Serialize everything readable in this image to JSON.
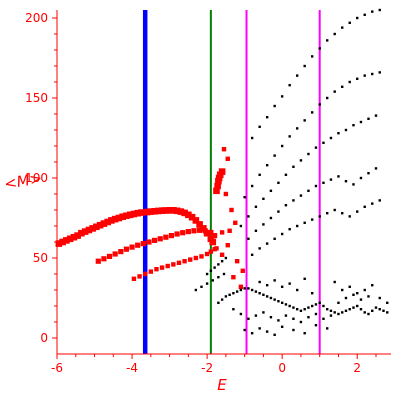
{
  "chart_data": {
    "type": "scatter",
    "xlabel": "E",
    "ylabel": "<M>",
    "xlim": [
      -6,
      2.9
    ],
    "ylim": [
      -10,
      205
    ],
    "xticks": [
      -6,
      -4,
      -2,
      0,
      2
    ],
    "yticks": [
      0,
      50,
      100,
      150,
      200
    ],
    "grid": false,
    "axis_color": "#ff0000",
    "vlines": [
      {
        "x": -3.65,
        "color": "#0000ff",
        "width": "thick"
      },
      {
        "x": -1.9,
        "color": "#008000",
        "width": "thin"
      },
      {
        "x": -0.95,
        "color": "#ff00ff",
        "width": "thin"
      },
      {
        "x": 1.0,
        "color": "#ff00ff",
        "width": "thin"
      }
    ],
    "series": [
      {
        "marker_color": "#ff0000",
        "marker": "large",
        "points": [
          [
            -5.95,
            59
          ],
          [
            -5.85,
            60
          ],
          [
            -5.75,
            61
          ],
          [
            -5.65,
            62
          ],
          [
            -5.55,
            63
          ],
          [
            -5.45,
            64
          ],
          [
            -5.35,
            65.5
          ],
          [
            -5.25,
            66.5
          ],
          [
            -5.15,
            67.5
          ],
          [
            -5.05,
            68.5
          ],
          [
            -4.95,
            69.5
          ],
          [
            -4.85,
            70.5
          ],
          [
            -4.75,
            71.5
          ],
          [
            -4.65,
            72.5
          ],
          [
            -4.55,
            73.5
          ],
          [
            -4.45,
            74.3
          ],
          [
            -4.35,
            75
          ],
          [
            -4.25,
            75.8
          ],
          [
            -4.15,
            76.4
          ],
          [
            -4.05,
            77
          ],
          [
            -3.95,
            77.5
          ],
          [
            -3.85,
            78
          ],
          [
            -3.75,
            78.4
          ],
          [
            -3.6,
            78.7
          ],
          [
            -3.5,
            79
          ],
          [
            -3.4,
            79.2
          ],
          [
            -3.3,
            79.4
          ],
          [
            -3.2,
            79.6
          ],
          [
            -3.1,
            79.7
          ],
          [
            -3.0,
            79.8
          ],
          [
            -2.9,
            79.8
          ],
          [
            -2.8,
            79.5
          ],
          [
            -2.7,
            79
          ],
          [
            -2.6,
            78.2
          ],
          [
            -2.5,
            77
          ],
          [
            -2.4,
            75.5
          ],
          [
            -2.3,
            73.5
          ],
          [
            -2.2,
            71
          ],
          [
            -2.1,
            68.5
          ],
          [
            -2.0,
            65.5
          ],
          [
            -1.9,
            62
          ],
          [
            -1.85,
            60
          ]
        ]
      },
      {
        "marker_color": "#ff0000",
        "marker": "medium",
        "points": [
          [
            -4.9,
            48
          ],
          [
            -4.75,
            49.5
          ],
          [
            -4.6,
            51
          ],
          [
            -4.45,
            52.5
          ],
          [
            -4.3,
            54
          ],
          [
            -4.15,
            55.5
          ],
          [
            -4.0,
            56.8
          ],
          [
            -3.85,
            58
          ],
          [
            -3.7,
            59
          ],
          [
            -3.55,
            60
          ],
          [
            -3.4,
            61
          ],
          [
            -3.25,
            62
          ],
          [
            -3.1,
            63
          ],
          [
            -2.95,
            64
          ],
          [
            -2.8,
            65
          ],
          [
            -2.65,
            65.8
          ],
          [
            -2.5,
            66.5
          ],
          [
            -2.35,
            67
          ],
          [
            -2.2,
            67.3
          ],
          [
            -2.05,
            67
          ],
          [
            -1.9,
            66
          ],
          [
            -1.8,
            64
          ]
        ]
      },
      {
        "marker_color": "#ff0000",
        "marker": "small",
        "points": [
          [
            -3.95,
            37
          ],
          [
            -3.8,
            38.5
          ],
          [
            -3.65,
            40
          ],
          [
            -3.5,
            41.5
          ],
          [
            -3.35,
            43
          ],
          [
            -3.2,
            44
          ],
          [
            -3.05,
            45
          ],
          [
            -2.9,
            46
          ],
          [
            -2.75,
            47
          ],
          [
            -2.6,
            48
          ],
          [
            -2.45,
            49
          ],
          [
            -2.3,
            50
          ],
          [
            -2.15,
            51
          ],
          [
            -2.0,
            52.5
          ],
          [
            -1.9,
            54
          ],
          [
            -1.8,
            55.5
          ]
        ]
      },
      {
        "marker_color": "#ff0000",
        "marker": "large",
        "points": [
          [
            -1.75,
            92
          ],
          [
            -1.72,
            95
          ],
          [
            -1.7,
            98
          ],
          [
            -1.68,
            100
          ],
          [
            -1.65,
            102
          ],
          [
            -1.6,
            104
          ]
        ]
      },
      {
        "marker_color": "#ff0000",
        "marker": "small",
        "points": [
          [
            -1.55,
            118
          ],
          [
            -1.45,
            112
          ],
          [
            -1.5,
            90
          ],
          [
            -1.35,
            80
          ],
          [
            -1.25,
            72
          ],
          [
            -1.6,
            66
          ],
          [
            -1.45,
            58
          ],
          [
            -1.2,
            48
          ],
          [
            -1.05,
            42
          ],
          [
            -1.3,
            38
          ],
          [
            -1.1,
            32
          ],
          [
            -1.6,
            52
          ],
          [
            -1.75,
            56
          ],
          [
            -1.4,
            67
          ]
        ]
      },
      {
        "marker_color": "#000000",
        "marker": "tiny",
        "points": [
          [
            -0.8,
            125
          ],
          [
            -0.6,
            132
          ],
          [
            -0.4,
            138
          ],
          [
            -0.2,
            145
          ],
          [
            0.0,
            151
          ],
          [
            0.2,
            158
          ],
          [
            0.4,
            164
          ],
          [
            0.6,
            170
          ],
          [
            0.8,
            176
          ],
          [
            1.0,
            181
          ],
          [
            1.2,
            186
          ],
          [
            1.4,
            190
          ],
          [
            1.6,
            194
          ],
          [
            1.8,
            197
          ],
          [
            2.0,
            200
          ],
          [
            2.2,
            202
          ],
          [
            2.4,
            204
          ],
          [
            2.6,
            205
          ],
          [
            -1.0,
            88
          ],
          [
            -0.8,
            95
          ],
          [
            -0.6,
            102
          ],
          [
            -0.4,
            108
          ],
          [
            -0.2,
            114
          ],
          [
            0.0,
            120
          ],
          [
            0.2,
            126
          ],
          [
            0.4,
            131
          ],
          [
            0.6,
            136
          ],
          [
            0.8,
            141
          ],
          [
            1.0,
            146
          ],
          [
            1.2,
            150
          ],
          [
            1.4,
            154
          ],
          [
            1.6,
            157
          ],
          [
            1.8,
            160
          ],
          [
            2.0,
            162
          ],
          [
            2.2,
            164
          ],
          [
            2.4,
            165
          ],
          [
            2.6,
            166
          ],
          [
            -1.1,
            70
          ],
          [
            -0.9,
            76
          ],
          [
            -0.7,
            82
          ],
          [
            -0.5,
            87
          ],
          [
            -0.3,
            92
          ],
          [
            -0.1,
            97
          ],
          [
            0.1,
            102
          ],
          [
            0.3,
            107
          ],
          [
            0.5,
            111
          ],
          [
            0.7,
            115
          ],
          [
            0.9,
            119
          ],
          [
            1.1,
            122
          ],
          [
            1.3,
            125
          ],
          [
            1.5,
            128
          ],
          [
            1.7,
            130
          ],
          [
            1.9,
            133
          ],
          [
            2.1,
            135
          ],
          [
            2.3,
            137
          ],
          [
            2.5,
            139
          ],
          [
            -0.9,
            62
          ],
          [
            -0.7,
            67
          ],
          [
            -0.5,
            71
          ],
          [
            -0.3,
            75
          ],
          [
            -0.1,
            79
          ],
          [
            0.1,
            83
          ],
          [
            0.3,
            86
          ],
          [
            0.5,
            89
          ],
          [
            0.7,
            92
          ],
          [
            0.9,
            95
          ],
          [
            1.1,
            97
          ],
          [
            1.3,
            99
          ],
          [
            1.5,
            101
          ],
          [
            1.7,
            98
          ],
          [
            1.9,
            96
          ],
          [
            2.1,
            100
          ],
          [
            2.3,
            103
          ],
          [
            2.5,
            106
          ],
          [
            -0.8,
            52
          ],
          [
            -0.6,
            56
          ],
          [
            -0.4,
            59
          ],
          [
            -0.2,
            62
          ],
          [
            0.0,
            65
          ],
          [
            0.2,
            68
          ],
          [
            0.4,
            70
          ],
          [
            0.6,
            72
          ],
          [
            0.8,
            74
          ],
          [
            1.0,
            76
          ],
          [
            1.2,
            78
          ],
          [
            1.4,
            80
          ],
          [
            1.6,
            78
          ],
          [
            1.8,
            76
          ],
          [
            2.0,
            79
          ],
          [
            2.2,
            82
          ],
          [
            2.4,
            84
          ],
          [
            2.6,
            86
          ],
          [
            -2.0,
            40
          ],
          [
            -1.9,
            42
          ],
          [
            -1.8,
            44
          ],
          [
            -1.7,
            46
          ],
          [
            -1.6,
            48
          ],
          [
            -1.5,
            50
          ],
          [
            -2.3,
            30
          ],
          [
            -2.15,
            32
          ],
          [
            -2.0,
            34
          ],
          [
            -1.85,
            36
          ],
          [
            -1.7,
            38
          ],
          [
            -1.55,
            40
          ],
          [
            -1.7,
            22
          ],
          [
            -1.6,
            24
          ],
          [
            -1.5,
            26
          ],
          [
            -1.4,
            27
          ],
          [
            -1.3,
            28
          ],
          [
            -1.2,
            29
          ],
          [
            -1.1,
            30
          ],
          [
            -1.0,
            31
          ],
          [
            -0.9,
            31
          ],
          [
            -0.8,
            30
          ],
          [
            -0.7,
            29
          ],
          [
            -0.6,
            28
          ],
          [
            -0.5,
            27
          ],
          [
            -0.4,
            26
          ],
          [
            -0.3,
            25
          ],
          [
            -0.2,
            24
          ],
          [
            -0.1,
            23
          ],
          [
            0.0,
            22
          ],
          [
            0.1,
            21
          ],
          [
            0.2,
            20
          ],
          [
            0.3,
            19
          ],
          [
            0.4,
            18
          ],
          [
            0.5,
            17
          ],
          [
            0.6,
            18
          ],
          [
            0.7,
            19
          ],
          [
            0.8,
            20
          ],
          [
            0.9,
            21
          ],
          [
            1.0,
            22
          ],
          [
            1.1,
            20
          ],
          [
            1.2,
            18
          ],
          [
            1.3,
            17
          ],
          [
            1.4,
            16
          ],
          [
            1.5,
            15
          ],
          [
            1.6,
            16
          ],
          [
            1.7,
            17
          ],
          [
            1.8,
            18
          ],
          [
            1.9,
            19
          ],
          [
            2.0,
            20
          ],
          [
            2.1,
            18
          ],
          [
            2.2,
            16
          ],
          [
            2.3,
            15
          ],
          [
            2.4,
            17
          ],
          [
            2.5,
            19
          ],
          [
            2.6,
            18
          ],
          [
            2.7,
            17
          ],
          [
            2.8,
            16
          ],
          [
            -1.3,
            18
          ],
          [
            -1.1,
            15
          ],
          [
            -0.9,
            12
          ],
          [
            -0.7,
            14
          ],
          [
            -0.5,
            16
          ],
          [
            -0.3,
            13
          ],
          [
            -0.1,
            11
          ],
          [
            0.1,
            14
          ],
          [
            0.3,
            12
          ],
          [
            0.5,
            10
          ],
          [
            0.7,
            13
          ],
          [
            0.9,
            15
          ],
          [
            1.1,
            12
          ],
          [
            1.3,
            14
          ],
          [
            1.5,
            22
          ],
          [
            1.7,
            25
          ],
          [
            1.9,
            27
          ],
          [
            2.1,
            24
          ],
          [
            2.3,
            26
          ],
          [
            -1.0,
            5
          ],
          [
            -0.8,
            3
          ],
          [
            -0.6,
            6
          ],
          [
            -0.4,
            4
          ],
          [
            -0.2,
            2
          ],
          [
            0.0,
            7
          ],
          [
            0.3,
            5
          ],
          [
            0.6,
            3
          ],
          [
            0.9,
            8
          ],
          [
            1.2,
            6
          ],
          [
            1.4,
            35
          ],
          [
            1.6,
            30
          ],
          [
            1.8,
            32
          ],
          [
            2.0,
            28
          ],
          [
            2.2,
            30
          ],
          [
            2.4,
            33
          ],
          [
            2.6,
            25
          ],
          [
            2.8,
            22
          ],
          [
            -0.6,
            35
          ],
          [
            -0.4,
            33
          ],
          [
            -0.2,
            36
          ],
          [
            0.0,
            32
          ],
          [
            0.2,
            34
          ],
          [
            0.4,
            30
          ],
          [
            0.6,
            37
          ],
          [
            0.8,
            28
          ]
        ]
      }
    ]
  }
}
